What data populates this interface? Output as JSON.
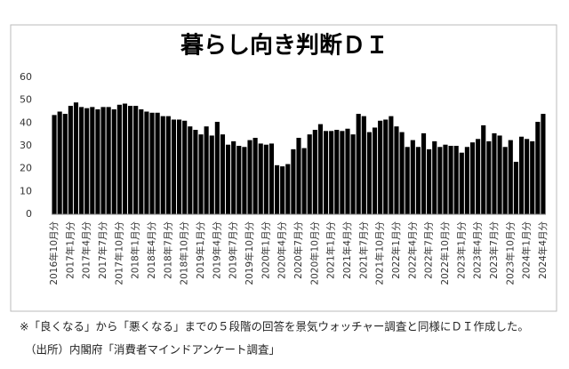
{
  "chart_data": {
    "type": "bar",
    "title": "暮らし向き判断ＤＩ",
    "categories": [
      "2016年10月分",
      null,
      null,
      "2017年1月分",
      null,
      null,
      "2017年4月分",
      null,
      null,
      "2017年7月分",
      null,
      null,
      "2017年10月分",
      null,
      null,
      "2018年1月分",
      null,
      null,
      "2018年4月分",
      null,
      null,
      "2018年7月分",
      null,
      null,
      "2018年10月分",
      null,
      null,
      "2019年1月分",
      null,
      null,
      "2019年4月分",
      null,
      null,
      "2019年7月分",
      null,
      null,
      "2019年10月分",
      null,
      null,
      "2020年1月分",
      null,
      null,
      "2020年4月分",
      null,
      null,
      "2020年7月分",
      null,
      null,
      "2020年10月分",
      null,
      null,
      "2021年1月分",
      null,
      null,
      "2021年4月分",
      null,
      null,
      "2021年7月分",
      null,
      null,
      "2021年10月分",
      null,
      null,
      "2022年1月分",
      null,
      null,
      "2022年4月分",
      null,
      null,
      "2022年7月分",
      null,
      null,
      "2022年10月分",
      null,
      null,
      "2023年1月分",
      null,
      null,
      "2023年4月分",
      null,
      null,
      "2023年7月分",
      null,
      null,
      "2023年10月分",
      null,
      null,
      "2024年1月分",
      null,
      null,
      "2024年4月分"
    ],
    "values": [
      43.5,
      45,
      44,
      47.5,
      49,
      47,
      46.5,
      47,
      46,
      47,
      47,
      46,
      48,
      48.5,
      47.5,
      47.5,
      46,
      45,
      44.5,
      44.5,
      43,
      43,
      41.5,
      41.5,
      41,
      38.5,
      37,
      35,
      38.5,
      34.5,
      40.5,
      35,
      30.5,
      32,
      30,
      29.5,
      32.5,
      33.5,
      31,
      30.5,
      31,
      21.5,
      21,
      22,
      28.5,
      33.5,
      29,
      35,
      37,
      39.5,
      36.5,
      36.5,
      37,
      36.5,
      37.5,
      35,
      44,
      43,
      36,
      38,
      41,
      41.5,
      43,
      38.5,
      36,
      29.5,
      32.5,
      29.5,
      35.5,
      28.5,
      32,
      29.5,
      30.5,
      30,
      30,
      27,
      29.5,
      31.5,
      33,
      39,
      32,
      35.5,
      34.5,
      29.5,
      32.5,
      23,
      34,
      33,
      32,
      40.5,
      44
    ],
    "color": "#000000",
    "ylim": [
      0,
      60
    ],
    "yticks": [
      0,
      10,
      20,
      30,
      40,
      50,
      60
    ],
    "grid": false,
    "notes": [
      "※「良くなる」から「悪くなる」までの５段階の回答を景気ウォッチャー調査と同様にＤＩ作成した。",
      "（出所）内閣府「消費者マインドアンケート調査」"
    ]
  }
}
